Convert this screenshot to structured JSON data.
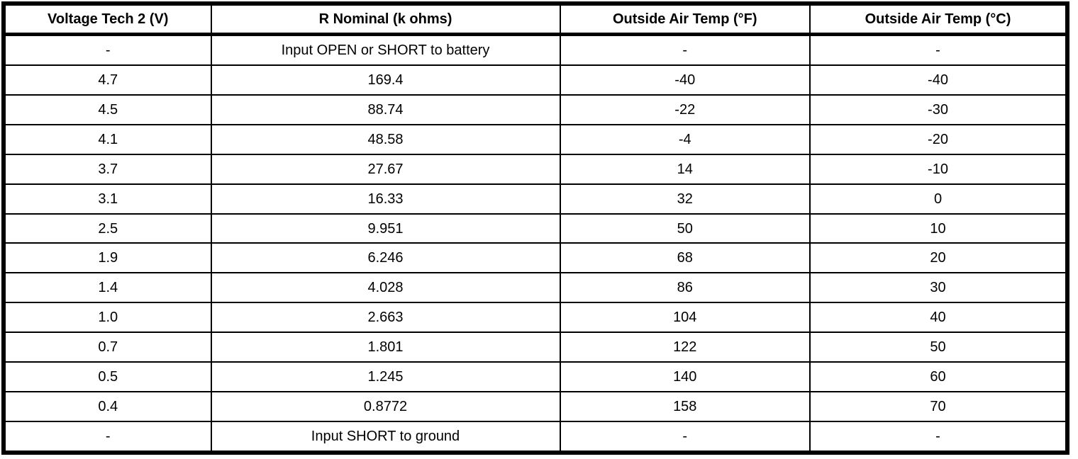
{
  "colors": {
    "border": "#000000",
    "background": "#ffffff",
    "text": "#000000"
  },
  "chart_data": {
    "type": "table",
    "columns": [
      "Voltage Tech 2 (V)",
      "R Nominal (k ohms)",
      "Outside Air Temp (°F)",
      "Outside Air Temp (°C)"
    ],
    "rows": [
      [
        "-",
        "Input OPEN or SHORT to battery",
        "-",
        "-"
      ],
      [
        "4.7",
        "169.4",
        "-40",
        "-40"
      ],
      [
        "4.5",
        "88.74",
        "-22",
        "-30"
      ],
      [
        "4.1",
        "48.58",
        "-4",
        "-20"
      ],
      [
        "3.7",
        "27.67",
        "14",
        "-10"
      ],
      [
        "3.1",
        "16.33",
        "32",
        "0"
      ],
      [
        "2.5",
        "9.951",
        "50",
        "10"
      ],
      [
        "1.9",
        "6.246",
        "68",
        "20"
      ],
      [
        "1.4",
        "4.028",
        "86",
        "30"
      ],
      [
        "1.0",
        "2.663",
        "104",
        "40"
      ],
      [
        "0.7",
        "1.801",
        "122",
        "50"
      ],
      [
        "0.5",
        "1.245",
        "140",
        "60"
      ],
      [
        "0.4",
        "0.8772",
        "158",
        "70"
      ],
      [
        "-",
        "Input SHORT to ground",
        "-",
        "-"
      ]
    ]
  }
}
